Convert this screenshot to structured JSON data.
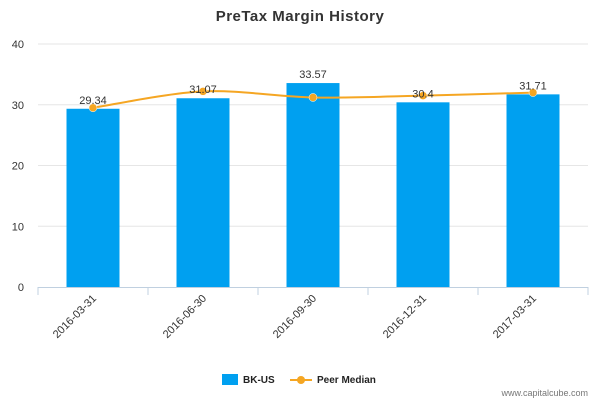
{
  "chart_data": {
    "type": "bar",
    "title": "PreTax Margin History",
    "categories": [
      "2016-03-31",
      "2016-06-30",
      "2016-09-30",
      "2016-12-31",
      "2017-03-31"
    ],
    "ylim": [
      0,
      40
    ],
    "yticks": [
      0,
      10,
      20,
      30,
      40
    ],
    "grid": true,
    "series": [
      {
        "name": "BK-US",
        "type": "bar",
        "color": "#00a0f0",
        "values": [
          29.34,
          31.07,
          33.57,
          30.4,
          31.71
        ],
        "labels": [
          "29.34",
          "31.07",
          "33.57",
          "30.4",
          "31.71"
        ]
      },
      {
        "name": "Peer Median",
        "type": "line",
        "color": "#f5a623",
        "values": [
          29.5,
          32.2,
          31.2,
          31.5,
          32.0
        ]
      }
    ],
    "legend_position": "bottom-center",
    "credit": "www.capitalcube.com"
  }
}
